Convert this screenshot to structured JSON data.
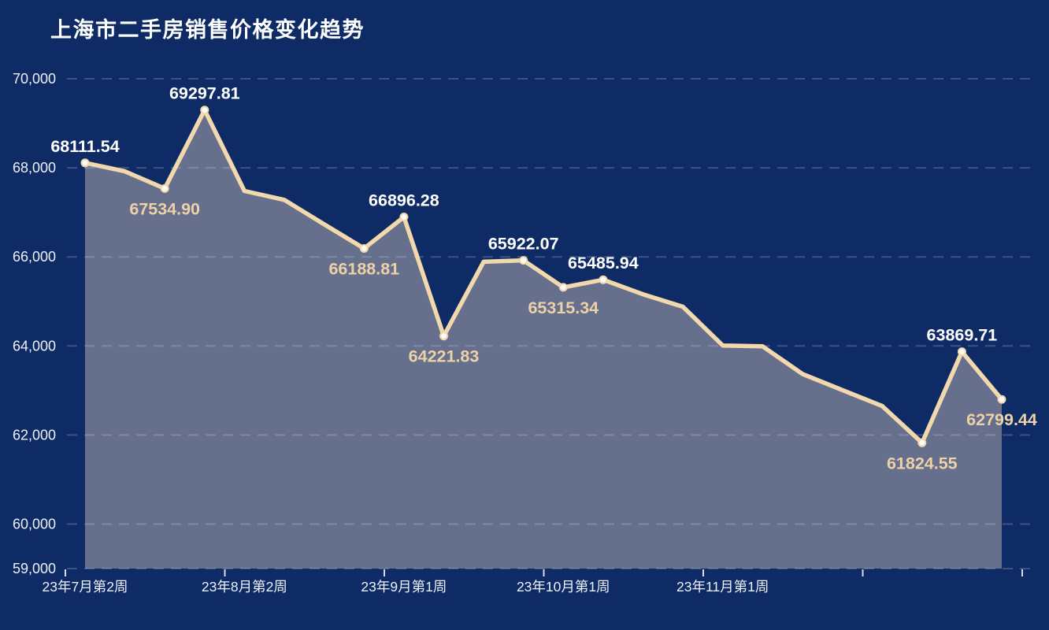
{
  "page": {
    "background": "#0e2b66"
  },
  "chart_data": {
    "type": "area",
    "title": "上海市二手房销售价格变化趋势",
    "ylim": [
      59000,
      70000
    ],
    "grid": "dashed-horizontal",
    "legend": "none",
    "y_ticks": [
      {
        "value": 70000,
        "label": "70,000"
      },
      {
        "value": 68000,
        "label": "68,000"
      },
      {
        "value": 66000,
        "label": "66,000"
      },
      {
        "value": 64000,
        "label": "64,000"
      },
      {
        "value": 62000,
        "label": "62,000"
      },
      {
        "value": 60000,
        "label": "60,000"
      },
      {
        "value": 59000,
        "label": "59,000"
      }
    ],
    "x_ticks": [
      {
        "index": 0,
        "label": "23年7月第2周"
      },
      {
        "index": 4,
        "label": "23年8月第2周"
      },
      {
        "index": 8,
        "label": "23年9月第1周"
      },
      {
        "index": 12,
        "label": "23年10月第1周"
      },
      {
        "index": 16,
        "label": "23年11月第1周"
      }
    ],
    "series": [
      {
        "points": [
          {
            "value": 68111.54,
            "label": "68111.54",
            "side": "above"
          },
          {
            "value": 67920,
            "label": null,
            "estimated": true
          },
          {
            "value": 67534.9,
            "label": "67534.90",
            "side": "below"
          },
          {
            "value": 69297.81,
            "label": "69297.81",
            "side": "above"
          },
          {
            "value": 67480,
            "label": null,
            "estimated": true
          },
          {
            "value": 67280,
            "label": null,
            "estimated": true
          },
          {
            "value": 66730,
            "label": null,
            "estimated": true
          },
          {
            "value": 66188.81,
            "label": "66188.81",
            "side": "below"
          },
          {
            "value": 66896.28,
            "label": "66896.28",
            "side": "above"
          },
          {
            "value": 64221.83,
            "label": "64221.83",
            "side": "below"
          },
          {
            "value": 65890,
            "label": null,
            "estimated": true
          },
          {
            "value": 65922.07,
            "label": "65922.07",
            "side": "above"
          },
          {
            "value": 65315.34,
            "label": "65315.34",
            "side": "below"
          },
          {
            "value": 65485.94,
            "label": "65485.94",
            "side": "above"
          },
          {
            "value": 65160,
            "label": null,
            "estimated": true
          },
          {
            "value": 64880,
            "label": null,
            "estimated": true
          },
          {
            "value": 64010,
            "label": null,
            "estimated": true
          },
          {
            "value": 63990,
            "label": null,
            "estimated": true
          },
          {
            "value": 63370,
            "label": null,
            "estimated": true
          },
          {
            "value": 63010,
            "label": null,
            "estimated": true
          },
          {
            "value": 62650,
            "label": null,
            "estimated": true
          },
          {
            "value": 61824.55,
            "label": "61824.55",
            "side": "below"
          },
          {
            "value": 63869.71,
            "label": "63869.71",
            "side": "above"
          },
          {
            "value": 62799.44,
            "label": "62799.44",
            "side": "below"
          }
        ]
      }
    ],
    "colors": {
      "background": "#0e2b66",
      "area_fill": "#666f8c",
      "line": "#f2d8ad",
      "dot_fill": "#ffffff",
      "dot_stroke": "#f2d8ad",
      "label_above": "#ffffff",
      "label_below": "#ecd2a6",
      "axis_text": "#eef1f8",
      "gridline": "rgba(222,230,248,0.22)",
      "tick": "#d7dded"
    }
  }
}
